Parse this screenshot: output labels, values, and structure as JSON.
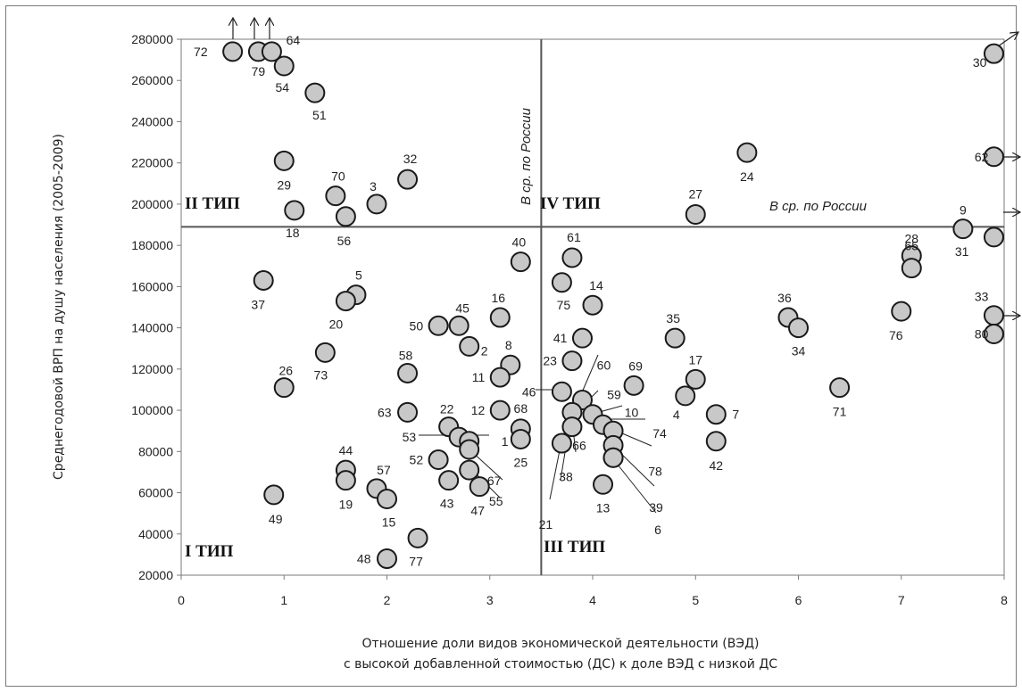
{
  "chart_data": {
    "type": "scatter",
    "title": "",
    "xlabel_line1": "Отношение доли видов экономической деятельности (ВЭД)",
    "xlabel_line2": "с высокой добавленной стоимостью (ДС) к доле ВЭД с низкой ДС",
    "ylabel": "Среднегодовой ВРП на душу населения (2005-2009)",
    "xlim": [
      0,
      8
    ],
    "ylim": [
      20000,
      280000
    ],
    "x_ticks": [
      "0",
      "1",
      "2",
      "3",
      "4",
      "5",
      "6",
      "7",
      "8"
    ],
    "y_ticks": [
      "20000",
      "40000",
      "60000",
      "80000",
      "100000",
      "120000",
      "140000",
      "160000",
      "180000",
      "200000",
      "220000",
      "240000",
      "260000",
      "280000"
    ],
    "reference_lines": {
      "vertical_x": 3.5,
      "vertical_label": "В ср. по России",
      "horizontal_y": 189000,
      "horizontal_label": "В ср. по России"
    },
    "quadrant_labels": [
      "I ТИП",
      "II ТИП",
      "III ТИП",
      "IV ТИП"
    ],
    "marker_color": "#c8c8c8",
    "points": [
      {
        "label": "72",
        "x": 0.5,
        "y": 274000
      },
      {
        "label": "79",
        "x": 0.75,
        "y": 274000
      },
      {
        "label": "64",
        "x": 0.88,
        "y": 274000
      },
      {
        "label": "54",
        "x": 1.0,
        "y": 267000
      },
      {
        "label": "51",
        "x": 1.3,
        "y": 254000
      },
      {
        "label": "29",
        "x": 1.0,
        "y": 221000
      },
      {
        "label": "70",
        "x": 1.5,
        "y": 204000
      },
      {
        "label": "18",
        "x": 1.1,
        "y": 197000
      },
      {
        "label": "56",
        "x": 1.6,
        "y": 194000
      },
      {
        "label": "3",
        "x": 1.9,
        "y": 200000
      },
      {
        "label": "32",
        "x": 2.2,
        "y": 212000
      },
      {
        "label": "37",
        "x": 0.8,
        "y": 163000
      },
      {
        "label": "5",
        "x": 1.7,
        "y": 156000
      },
      {
        "label": "20",
        "x": 1.6,
        "y": 153000
      },
      {
        "label": "73",
        "x": 1.4,
        "y": 128000
      },
      {
        "label": "26",
        "x": 1.0,
        "y": 111000
      },
      {
        "label": "58",
        "x": 2.2,
        "y": 118000
      },
      {
        "label": "63",
        "x": 2.2,
        "y": 99000
      },
      {
        "label": "44",
        "x": 1.6,
        "y": 71000
      },
      {
        "label": "19",
        "x": 1.6,
        "y": 66000
      },
      {
        "label": "57",
        "x": 1.9,
        "y": 62000
      },
      {
        "label": "15",
        "x": 2.0,
        "y": 57000
      },
      {
        "label": "49",
        "x": 0.9,
        "y": 59000
      },
      {
        "label": "48",
        "x": 2.0,
        "y": 28000
      },
      {
        "label": "77",
        "x": 2.3,
        "y": 38000
      },
      {
        "label": "50",
        "x": 2.5,
        "y": 141000
      },
      {
        "label": "45",
        "x": 2.7,
        "y": 141000
      },
      {
        "label": "2",
        "x": 2.8,
        "y": 131000
      },
      {
        "label": "16",
        "x": 3.1,
        "y": 145000
      },
      {
        "label": "40",
        "x": 3.3,
        "y": 172000
      },
      {
        "label": "8",
        "x": 3.2,
        "y": 122000
      },
      {
        "label": "11",
        "x": 3.1,
        "y": 116000
      },
      {
        "label": "12",
        "x": 3.1,
        "y": 100000
      },
      {
        "label": "68",
        "x": 3.3,
        "y": 91000
      },
      {
        "label": "25",
        "x": 3.3,
        "y": 86000
      },
      {
        "label": "22",
        "x": 2.6,
        "y": 92000
      },
      {
        "label": "53",
        "x": 2.7,
        "y": 87000
      },
      {
        "label": "1",
        "x": 2.8,
        "y": 85000
      },
      {
        "label": "52",
        "x": 2.5,
        "y": 76000
      },
      {
        "label": "67",
        "x": 2.8,
        "y": 81000
      },
      {
        "label": "55",
        "x": 2.8,
        "y": 71000
      },
      {
        "label": "43",
        "x": 2.6,
        "y": 66000
      },
      {
        "label": "47",
        "x": 2.9,
        "y": 63000
      },
      {
        "label": "75",
        "x": 3.7,
        "y": 162000
      },
      {
        "label": "61",
        "x": 3.8,
        "y": 174000
      },
      {
        "label": "14",
        "x": 4.0,
        "y": 151000
      },
      {
        "label": "41",
        "x": 3.9,
        "y": 135000
      },
      {
        "label": "23",
        "x": 3.8,
        "y": 124000
      },
      {
        "label": "46",
        "x": 3.7,
        "y": 109000
      },
      {
        "label": "60",
        "x": 3.9,
        "y": 105000
      },
      {
        "label": "59",
        "x": 4.0,
        "y": 98000
      },
      {
        "label": "10",
        "x": 4.1,
        "y": 93000
      },
      {
        "label": "74",
        "x": 4.2,
        "y": 90000
      },
      {
        "label": "66",
        "x": 3.8,
        "y": 99000
      },
      {
        "label": "38",
        "x": 3.8,
        "y": 92000
      },
      {
        "label": "21",
        "x": 3.7,
        "y": 84000
      },
      {
        "label": "13",
        "x": 4.1,
        "y": 64000
      },
      {
        "label": "78",
        "x": 4.2,
        "y": 83000
      },
      {
        "label": "39",
        "x": 4.2,
        "y": 77000
      },
      {
        "label": "6",
        "x": 4.2,
        "y": 77000
      },
      {
        "label": "69",
        "x": 4.4,
        "y": 112000
      },
      {
        "label": "35",
        "x": 4.8,
        "y": 135000
      },
      {
        "label": "17",
        "x": 5.0,
        "y": 115000
      },
      {
        "label": "4",
        "x": 4.9,
        "y": 107000
      },
      {
        "label": "7",
        "x": 5.2,
        "y": 98000
      },
      {
        "label": "42",
        "x": 5.2,
        "y": 85000
      },
      {
        "label": "36",
        "x": 5.9,
        "y": 145000
      },
      {
        "label": "34",
        "x": 6.0,
        "y": 140000
      },
      {
        "label": "71",
        "x": 6.4,
        "y": 111000
      },
      {
        "label": "76",
        "x": 7.0,
        "y": 148000
      },
      {
        "label": "28",
        "x": 7.1,
        "y": 175000
      },
      {
        "label": "65",
        "x": 7.1,
        "y": 169000
      },
      {
        "label": "9",
        "x": 7.6,
        "y": 188000
      },
      {
        "label": "31",
        "x": 7.9,
        "y": 184000
      },
      {
        "label": "33",
        "x": 7.9,
        "y": 146000
      },
      {
        "label": "80",
        "x": 7.9,
        "y": 137000
      },
      {
        "label": "62",
        "x": 7.9,
        "y": 223000
      },
      {
        "label": "30",
        "x": 7.9,
        "y": 273000
      },
      {
        "label": "24",
        "x": 5.5,
        "y": 225000
      },
      {
        "label": "27",
        "x": 5.0,
        "y": 195000
      }
    ]
  }
}
